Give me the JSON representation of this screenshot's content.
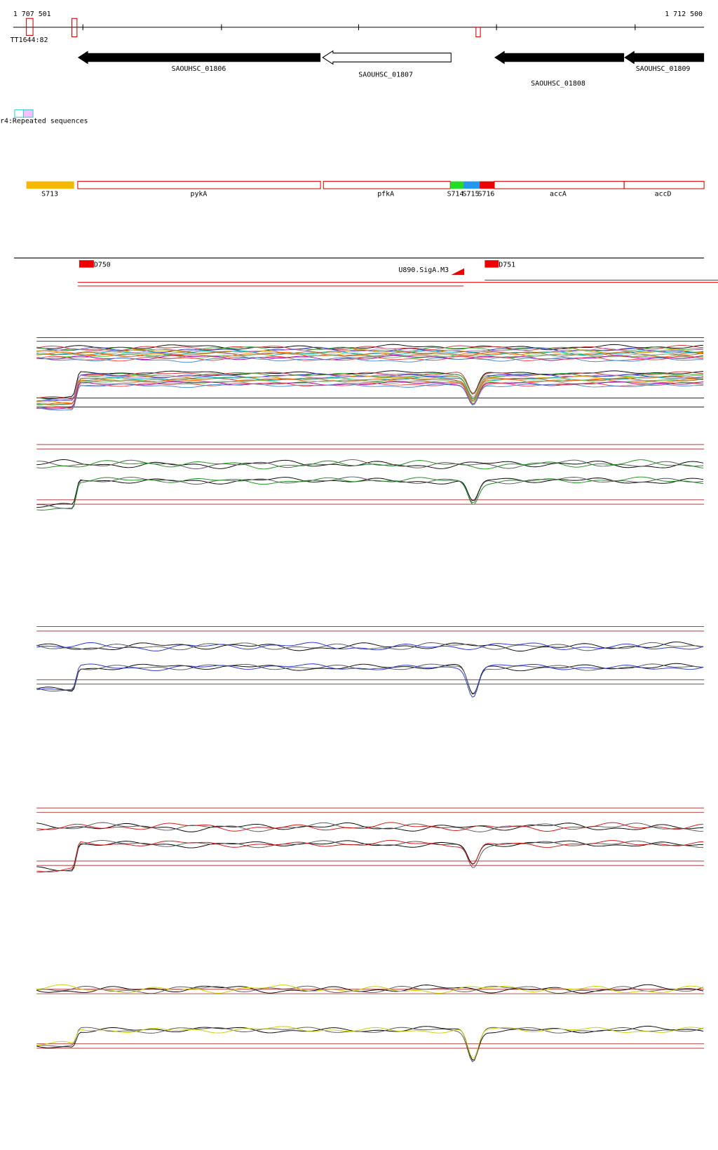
{
  "header": {
    "start": "1 707 501",
    "end": "1 712 500",
    "marker": "TT1644:82"
  },
  "genes": [
    {
      "label": "SAOUHSC_01806"
    },
    {
      "label": "SAOUHSC_01807"
    },
    {
      "label": "SAOUHSC_01808"
    },
    {
      "label": "SAOUHSC_01809"
    }
  ],
  "repeats": {
    "label": "r4:Repeated sequences"
  },
  "segments": [
    {
      "label": "S713"
    },
    {
      "label": "pykA"
    },
    {
      "label": "pfkA"
    },
    {
      "label": "S714"
    },
    {
      "label": "S715"
    },
    {
      "label": "S716"
    },
    {
      "label": "accA"
    },
    {
      "label": "accD"
    }
  ],
  "features": [
    {
      "label": "D750"
    },
    {
      "label": "U890.SigA.M3"
    },
    {
      "label": "D751"
    }
  ]
}
